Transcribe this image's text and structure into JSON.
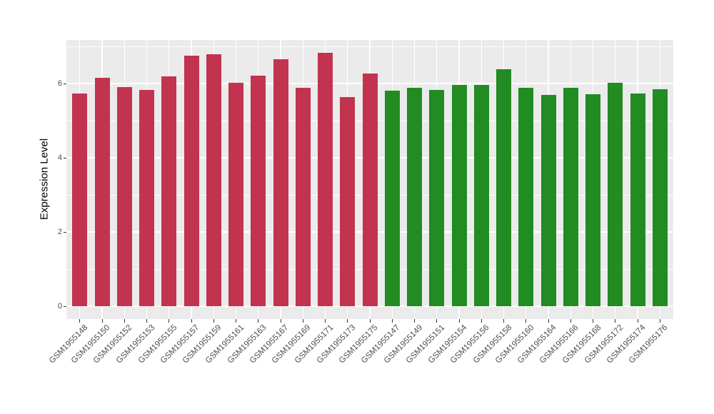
{
  "chart_data": {
    "type": "bar",
    "title": "",
    "xlabel": "",
    "ylabel": "Expression Level",
    "ylim": [
      0,
      7.17
    ],
    "yticks_major": [
      0,
      2,
      4,
      6
    ],
    "yticks_minor": [
      1,
      3,
      5,
      7
    ],
    "ytick_labels": [
      "0",
      "2",
      "4",
      "6"
    ],
    "grid": true,
    "legend_position": "none",
    "panel_background": "#EBEBEB",
    "gridline_color": "#ffffff",
    "group_colors": {
      "groupA": "#C23350",
      "groupB": "#228B22"
    },
    "categories": [
      "GSM1955148",
      "GSM1955150",
      "GSM1955152",
      "GSM1955153",
      "GSM1955155",
      "GSM1955157",
      "GSM1955159",
      "GSM1955161",
      "GSM1955163",
      "GSM1955167",
      "GSM1955169",
      "GSM1955171",
      "GSM1955173",
      "GSM1955175",
      "GSM1955147",
      "GSM1955149",
      "GSM1955151",
      "GSM1955154",
      "GSM1955156",
      "GSM1955158",
      "GSM1955160",
      "GSM1955164",
      "GSM1955166",
      "GSM1955168",
      "GSM1955172",
      "GSM1955174",
      "GSM1955176"
    ],
    "values": [
      5.73,
      6.15,
      5.89,
      5.82,
      6.19,
      6.74,
      6.77,
      6.01,
      6.2,
      6.65,
      5.88,
      6.82,
      5.63,
      6.26,
      5.8,
      5.87,
      5.82,
      5.95,
      5.95,
      6.38,
      5.88,
      5.69,
      5.88,
      5.7,
      6.01,
      5.73,
      5.84
    ],
    "groups": [
      "groupA",
      "groupA",
      "groupA",
      "groupA",
      "groupA",
      "groupA",
      "groupA",
      "groupA",
      "groupA",
      "groupA",
      "groupA",
      "groupA",
      "groupA",
      "groupA",
      "groupB",
      "groupB",
      "groupB",
      "groupB",
      "groupB",
      "groupB",
      "groupB",
      "groupB",
      "groupB",
      "groupB",
      "groupB",
      "groupB",
      "groupB"
    ]
  }
}
